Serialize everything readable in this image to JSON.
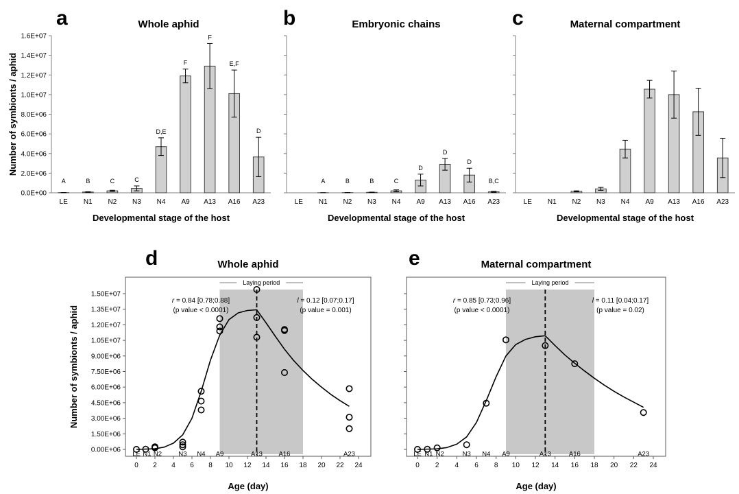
{
  "chart_data": [
    {
      "type": "bar",
      "panel": "a",
      "title": "Whole aphid",
      "xlabel": "Developmental stage of the host",
      "ylabel": "Number of symbionts / aphid",
      "ylim": [
        0,
        16000000
      ],
      "yticks": [
        "0.0E+00",
        "2.0E+06",
        "4.0E+06",
        "6.0E+06",
        "8.0E+06",
        "1.0E+07",
        "1.2E+07",
        "1.4E+07",
        "1.6E+07"
      ],
      "categories": [
        "LE",
        "N1",
        "N2",
        "N3",
        "N4",
        "A9",
        "A13",
        "A16",
        "A23"
      ],
      "values": [
        20000,
        80000,
        200000,
        450000,
        4700000,
        11900000,
        12900000,
        10100000,
        3650000
      ],
      "errors": [
        10000,
        30000,
        60000,
        250000,
        900000,
        700000,
        2300000,
        2400000,
        2000000
      ],
      "letters": [
        "A",
        "B",
        "C",
        "C",
        "D,E",
        "F",
        "F",
        "E,F",
        "D"
      ]
    },
    {
      "type": "bar",
      "panel": "b",
      "title": "Embryonic chains",
      "xlabel": "Developmental stage of the host",
      "ylim": [
        0,
        16000000
      ],
      "categories": [
        "LE",
        "N1",
        "N2",
        "N3",
        "N4",
        "A9",
        "A13",
        "A16",
        "A23"
      ],
      "values": [
        0,
        10000,
        20000,
        50000,
        200000,
        1300000,
        2900000,
        1800000,
        100000
      ],
      "errors": [
        0,
        5000,
        10000,
        20000,
        100000,
        600000,
        600000,
        700000,
        50000
      ],
      "letters": [
        "",
        "A",
        "B",
        "B",
        "C",
        "D",
        "D",
        "D",
        "B,C"
      ]
    },
    {
      "type": "bar",
      "panel": "c",
      "title": "Maternal compartment",
      "xlabel": "Developmental stage of the host",
      "ylim": [
        0,
        16000000
      ],
      "categories": [
        "LE",
        "N1",
        "N2",
        "N3",
        "N4",
        "A9",
        "A13",
        "A16",
        "A23"
      ],
      "values": [
        0,
        0,
        150000,
        400000,
        4450000,
        10550000,
        10000000,
        8250000,
        3550000
      ],
      "errors": [
        0,
        0,
        50000,
        150000,
        900000,
        900000,
        2400000,
        2400000,
        2000000
      ],
      "letters": []
    },
    {
      "type": "scatter",
      "panel": "d",
      "title": "Whole aphid",
      "xlabel": "Age (day)",
      "ylabel": "Number of symbionts / aphid",
      "xlim": [
        0,
        24
      ],
      "ylim": [
        0,
        15000000
      ],
      "xticks": [
        "0",
        "2",
        "4",
        "6",
        "8",
        "10",
        "12",
        "14",
        "16",
        "18",
        "20",
        "22",
        "24"
      ],
      "yticks": [
        "0.00E+06",
        "1.50E+06",
        "3.00E+06",
        "4.50E+06",
        "6.00E+06",
        "7.50E+06",
        "9.00E+06",
        "1.05E+07",
        "1.20E+07",
        "1.35E+07",
        "1.50E+07"
      ],
      "stage_labels": [
        "LE",
        "N1",
        "N2",
        "N3",
        "N4",
        "A9",
        "A13",
        "A16",
        "A23"
      ],
      "stage_days": [
        0,
        1,
        2,
        5,
        7,
        9,
        13,
        16,
        23
      ],
      "points": [
        [
          0,
          0
        ],
        [
          1,
          20000
        ],
        [
          2,
          150000
        ],
        [
          2,
          250000
        ],
        [
          5,
          250000
        ],
        [
          5,
          450000
        ],
        [
          5,
          700000
        ],
        [
          7,
          3800000
        ],
        [
          7,
          4650000
        ],
        [
          7,
          5600000
        ],
        [
          9,
          11400000
        ],
        [
          9,
          11800000
        ],
        [
          9,
          12600000
        ],
        [
          13,
          10800000
        ],
        [
          13,
          12700000
        ],
        [
          13,
          15400000
        ],
        [
          16,
          7400000
        ],
        [
          16,
          11450000
        ],
        [
          16,
          11550000
        ],
        [
          23,
          2000000
        ],
        [
          23,
          3100000
        ],
        [
          23,
          5850000
        ]
      ],
      "fit_curve": [
        [
          0,
          0
        ],
        [
          2,
          60000
        ],
        [
          3,
          220000
        ],
        [
          4,
          600000
        ],
        [
          5,
          1400000
        ],
        [
          6,
          3000000
        ],
        [
          7,
          5600000
        ],
        [
          8,
          8600000
        ],
        [
          9,
          11000000
        ],
        [
          10,
          12500000
        ],
        [
          11,
          13150000
        ],
        [
          12,
          13380000
        ],
        [
          13,
          13450000
        ],
        [
          14,
          12200000
        ],
        [
          15,
          10900000
        ],
        [
          16,
          9650000
        ],
        [
          17,
          8550000
        ],
        [
          18,
          7600000
        ],
        [
          19,
          6750000
        ],
        [
          20,
          6000000
        ],
        [
          21,
          5300000
        ],
        [
          22,
          4700000
        ],
        [
          23,
          4150000
        ]
      ],
      "peak_day": 13,
      "laying_period": [
        9,
        18
      ],
      "laying_label": "Laying period",
      "r_label": "r",
      "r_stat": " = 0.84 [0.78;0.88]",
      "r_p": "(p value < 0.0001)",
      "l_label": "l",
      "l_stat": " = 0.12 [0.07;0.17]",
      "l_p": "(p value = 0.001)"
    },
    {
      "type": "scatter",
      "panel": "e",
      "title": "Maternal compartment",
      "xlabel": "Age (day)",
      "xlim": [
        0,
        24
      ],
      "ylim": [
        0,
        15000000
      ],
      "xticks": [
        "0",
        "2",
        "4",
        "6",
        "8",
        "10",
        "12",
        "14",
        "16",
        "18",
        "20",
        "22",
        "24"
      ],
      "stage_labels": [
        "LE",
        "N1",
        "N2",
        "N3",
        "N4",
        "A9",
        "A13",
        "A16",
        "A23"
      ],
      "stage_days": [
        0,
        1,
        2,
        5,
        7,
        9,
        13,
        16,
        23
      ],
      "points": [
        [
          0,
          0
        ],
        [
          1,
          20000
        ],
        [
          2,
          150000
        ],
        [
          5,
          450000
        ],
        [
          7,
          4450000
        ],
        [
          9,
          10550000
        ],
        [
          13,
          10000000
        ],
        [
          16,
          8250000
        ],
        [
          23,
          3550000
        ]
      ],
      "fit_curve": [
        [
          0,
          0
        ],
        [
          2,
          50000
        ],
        [
          3,
          180000
        ],
        [
          4,
          500000
        ],
        [
          5,
          1200000
        ],
        [
          6,
          2600000
        ],
        [
          7,
          4700000
        ],
        [
          8,
          7000000
        ],
        [
          9,
          9000000
        ],
        [
          10,
          10100000
        ],
        [
          11,
          10600000
        ],
        [
          12,
          10850000
        ],
        [
          13,
          10950000
        ],
        [
          14,
          10000000
        ],
        [
          15,
          9100000
        ],
        [
          16,
          8300000
        ],
        [
          17,
          7550000
        ],
        [
          18,
          6850000
        ],
        [
          19,
          6200000
        ],
        [
          20,
          5600000
        ],
        [
          21,
          5050000
        ],
        [
          22,
          4550000
        ],
        [
          23,
          4050000
        ]
      ],
      "peak_day": 13,
      "laying_period": [
        9,
        18
      ],
      "laying_label": "Laying period",
      "r_label": "r",
      "r_stat": " = 0.85 [0.73;0.96]",
      "r_p": "(p value < 0.0001)",
      "l_label": "l",
      "l_stat": " = 0.11 [0.04;0.17]",
      "l_p": "(p value = 0.02)"
    }
  ],
  "colors": {
    "bar_fill": "#d0d0d0",
    "bar_stroke": "#404040",
    "laying_fill": "#c8c8c8",
    "axis": "#7f7f7f",
    "curve": "#000000"
  }
}
